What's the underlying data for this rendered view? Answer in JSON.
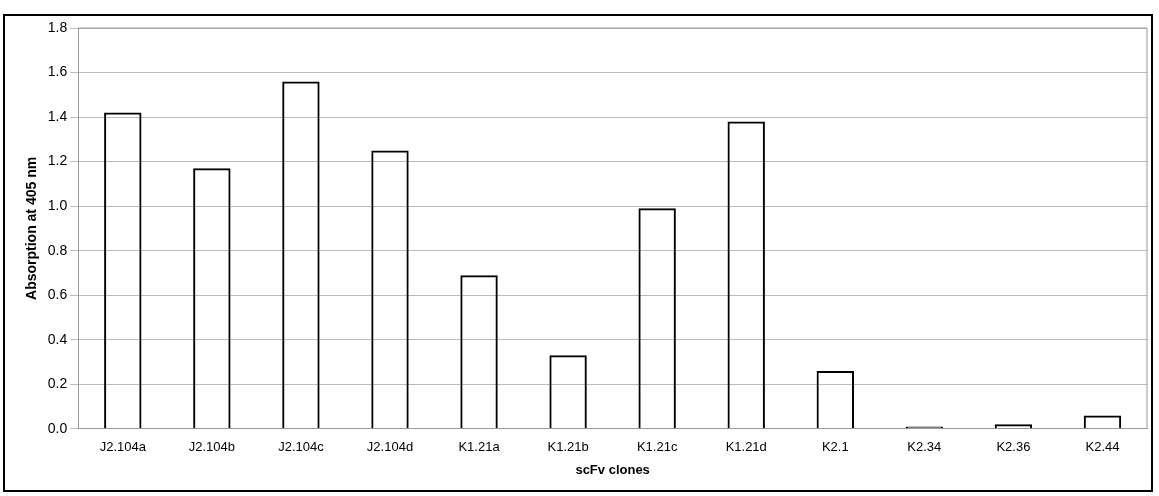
{
  "chart_data": {
    "type": "bar",
    "xlabel": "scFv clones",
    "ylabel": "Absorption at 405 nm",
    "categories": [
      "J2.104a",
      "J2.104b",
      "J2.104c",
      "J2.104d",
      "K1.21a",
      "K1.21b",
      "K1.21c",
      "K1.21d",
      "K2.1",
      "K2.34",
      "K2.36",
      "K2.44"
    ],
    "values": [
      1.42,
      1.17,
      1.56,
      1.25,
      0.69,
      0.33,
      0.99,
      1.38,
      0.26,
      0.01,
      0.02,
      0.06
    ],
    "color": "#000000",
    "ylim": [
      0,
      1.8
    ],
    "yticks": [
      {
        "value": 0,
        "label": "0.0"
      },
      {
        "value": 0.2,
        "label": "0.2"
      },
      {
        "value": 0.4,
        "label": "0.4"
      },
      {
        "value": 0.6,
        "label": "0.6"
      },
      {
        "value": 0.8,
        "label": "0.8"
      },
      {
        "value": 1,
        "label": "1.0"
      },
      {
        "value": 1.2,
        "label": "1.2"
      },
      {
        "value": 1.4,
        "label": "1.4"
      },
      {
        "value": 1.6,
        "label": "1.6"
      },
      {
        "value": 1.8,
        "label": "1.8"
      }
    ],
    "grid": "y",
    "legend": false
  }
}
